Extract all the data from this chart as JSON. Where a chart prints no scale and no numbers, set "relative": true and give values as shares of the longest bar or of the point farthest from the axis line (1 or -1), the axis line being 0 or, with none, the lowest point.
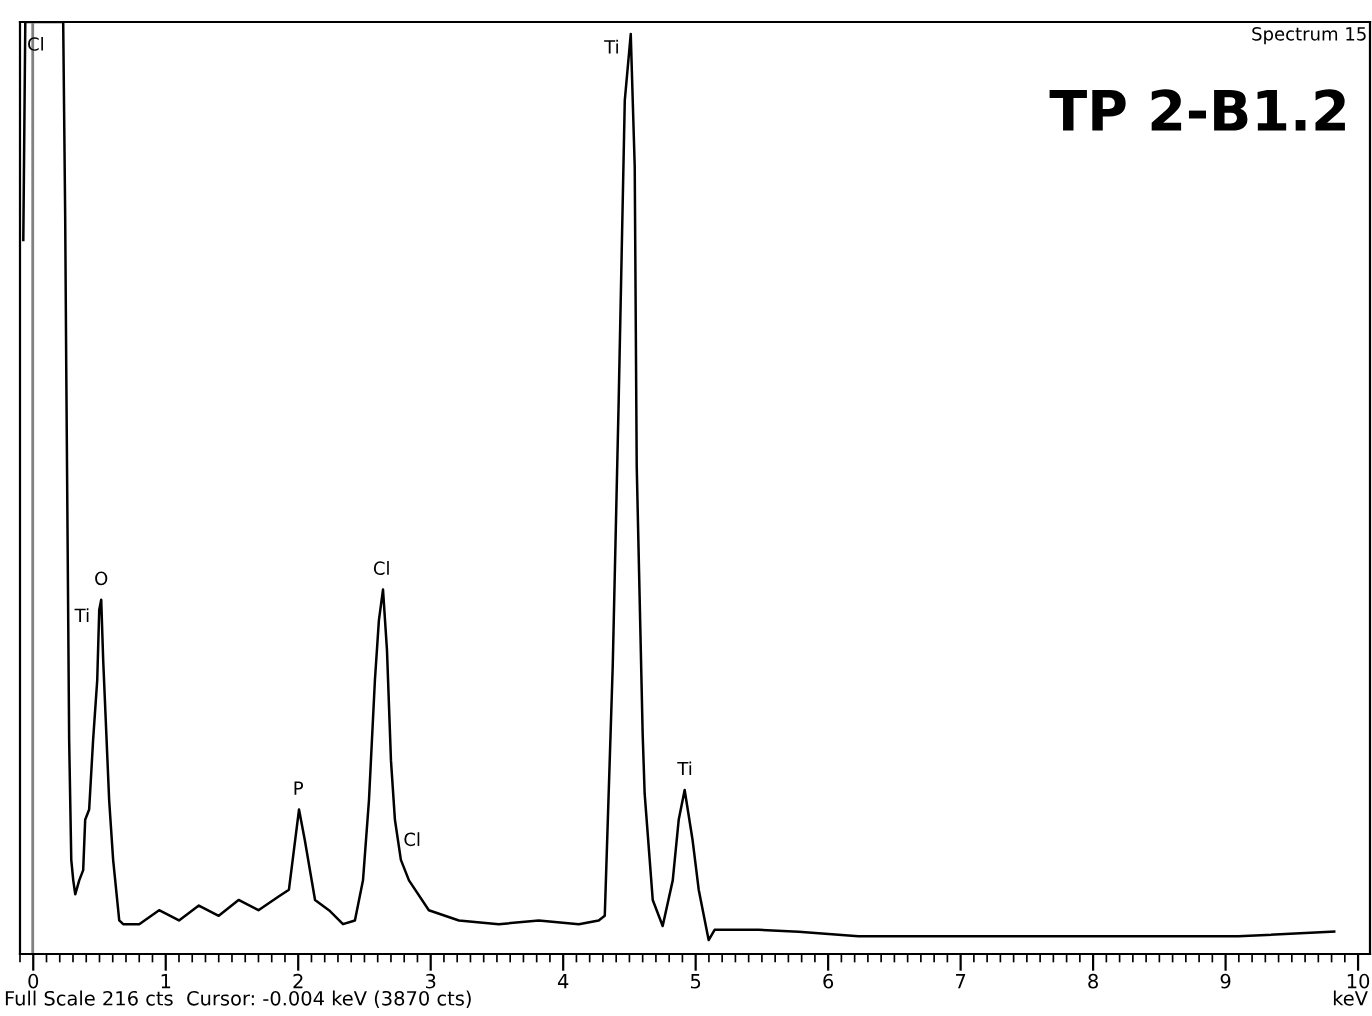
{
  "chart_data": {
    "type": "line",
    "relative": true,
    "title": "TP 2-B1.2",
    "subtitle": "Spectrum 15",
    "xlabel": "keV",
    "xlim": [
      -0.1,
      10.09
    ],
    "xticks": [
      0,
      1,
      2,
      3,
      4,
      5,
      6,
      7,
      8,
      9,
      10
    ],
    "grid": false,
    "marker": "none",
    "line_style": "solid",
    "ref_lines": [
      {
        "axis": "x",
        "value": -0.004,
        "color": "#808080"
      }
    ],
    "annotations": [
      "Full Scale 216 cts  Cursor: -0.004 keV (3870 cts)",
      {
        "text": "Cl",
        "x": 0.17,
        "y": 0.99
      },
      {
        "text": "O",
        "x": 0.513,
        "y": 0.38
      },
      {
        "text": "Ti",
        "x": 0.513,
        "y": 0.38
      },
      {
        "text": "P",
        "x": 2.0,
        "y": 0.155
      },
      {
        "text": "Cl",
        "x": 2.63,
        "y": 0.391
      },
      {
        "text": "Cl",
        "x": 2.86,
        "y": 0.1
      },
      {
        "text": "Ti",
        "x": 4.51,
        "y": 0.987
      },
      {
        "text": "Ti",
        "x": 4.92,
        "y": 0.176
      }
    ],
    "series": [
      {
        "color": "#000000",
        "x": [
          -0.075,
          -0.06,
          0.226,
          0.241,
          0.249,
          0.271,
          0.287,
          0.302,
          0.317,
          0.347,
          0.377,
          0.392,
          0.422,
          0.452,
          0.483,
          0.498,
          0.513,
          0.528,
          0.573,
          0.603,
          0.649,
          0.679,
          0.8,
          0.95,
          1.1,
          1.25,
          1.4,
          1.55,
          1.7,
          1.855,
          1.93,
          2.006,
          2.05,
          2.127,
          2.232,
          2.338,
          2.428,
          2.489,
          2.534,
          2.579,
          2.609,
          2.64,
          2.67,
          2.7,
          2.73,
          2.775,
          2.836,
          2.986,
          3.213,
          3.514,
          3.816,
          4.118,
          4.268,
          4.314,
          4.374,
          4.419,
          4.465,
          4.51,
          4.54,
          4.555,
          4.6,
          4.615,
          4.676,
          4.751,
          4.827,
          4.872,
          4.917,
          4.977,
          5.023,
          5.098,
          5.143,
          5.475,
          5.777,
          6.229,
          6.833,
          7.587,
          8.341,
          9.095,
          9.82
        ],
        "values": [
          0.766,
          1.0,
          1.0,
          0.792,
          0.631,
          0.23,
          0.101,
          0.079,
          0.064,
          0.079,
          0.09,
          0.144,
          0.155,
          0.23,
          0.294,
          0.369,
          0.38,
          0.315,
          0.165,
          0.101,
          0.036,
          0.032,
          0.032,
          0.047,
          0.036,
          0.052,
          0.041,
          0.058,
          0.047,
          0.062,
          0.069,
          0.155,
          0.122,
          0.058,
          0.047,
          0.032,
          0.036,
          0.079,
          0.165,
          0.294,
          0.358,
          0.391,
          0.326,
          0.208,
          0.144,
          0.101,
          0.079,
          0.047,
          0.036,
          0.032,
          0.036,
          0.032,
          0.036,
          0.041,
          0.309,
          0.594,
          0.916,
          0.987,
          0.845,
          0.524,
          0.236,
          0.172,
          0.058,
          0.03,
          0.079,
          0.144,
          0.176,
          0.122,
          0.069,
          0.015,
          0.026,
          0.026,
          0.024,
          0.019,
          0.019,
          0.019,
          0.019,
          0.019,
          0.024
        ]
      }
    ]
  }
}
